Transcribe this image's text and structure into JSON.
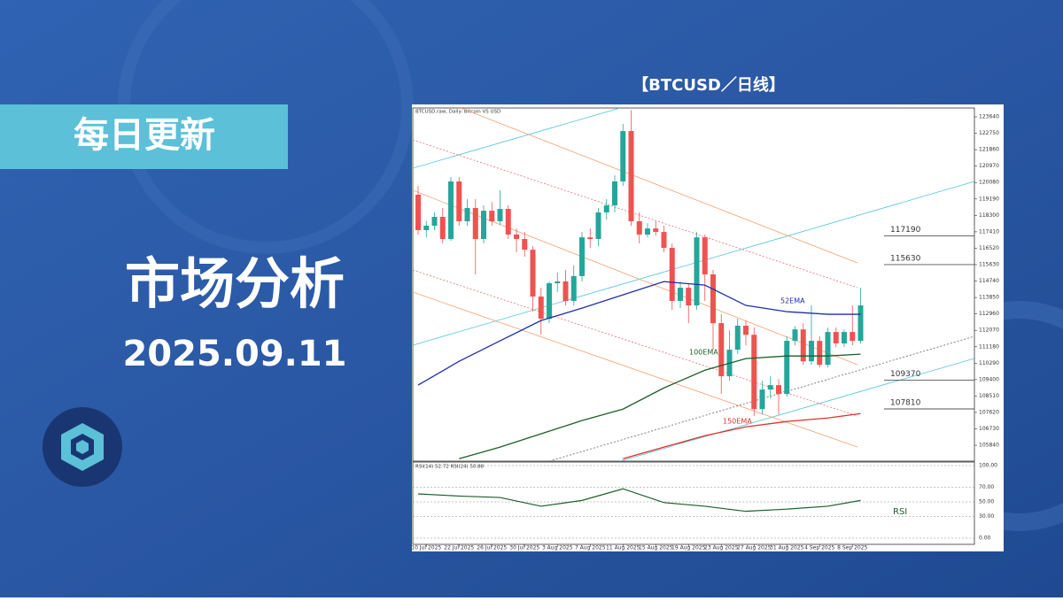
{
  "banner": "每日更新",
  "headline": "市场分析",
  "date": "2025.09.11",
  "chart_data": {
    "type": "candlestick",
    "title": "【BTCUSD／日线】",
    "subtitle": "BTCUSD.raw, Daily: Bitcoin VS USD",
    "categories": [
      null,
      "10 Jul 2025",
      null,
      null,
      null,
      "22 Jul 2025",
      null,
      null,
      null,
      "26 Jul 2025",
      null,
      null,
      null,
      "30 Jul 2025",
      null,
      null,
      null,
      "3 Aug 2025",
      null,
      null,
      null,
      "7 Aug 2025",
      null,
      null,
      null,
      "11 Aug 2025",
      null,
      null,
      null,
      "15 Aug 2025",
      null,
      null,
      null,
      "19 Aug 2025",
      null,
      null,
      null,
      "23 Aug 2025",
      null,
      null,
      null,
      "27 Aug 2025",
      null,
      null,
      null,
      "31 Aug 2025",
      null,
      null,
      null,
      "4 Sep 2025",
      null,
      null,
      null,
      "8 Sep 2025",
      null
    ],
    "open": [
      119420,
      117500,
      117740,
      118220,
      117020,
      120140,
      117980,
      118700,
      117020,
      118550,
      117980,
      118650,
      117260,
      117020,
      116440,
      113900,
      112700,
      114620,
      114720,
      113660,
      115010,
      117110,
      117020,
      118460,
      118840,
      120140,
      122870,
      117980,
      117260,
      117590,
      117400,
      116540,
      113660,
      114380,
      113420,
      117110,
      115100,
      112460,
      109580,
      111020,
      112320,
      111830,
      107800,
      108860,
      109100,
      108620,
      111500,
      112120,
      110390,
      111500,
      110200,
      111980,
      111360,
      111980,
      111500
    ],
    "high": [
      119900,
      118000,
      118460,
      118700,
      120380,
      120380,
      119180,
      119180,
      118840,
      119030,
      119660,
      118840,
      117590,
      117400,
      116630,
      114380,
      114720,
      115200,
      115340,
      115580,
      117400,
      117590,
      118700,
      119180,
      120470,
      123260,
      124000,
      118460,
      117880,
      117980,
      117740,
      116780,
      114720,
      114620,
      117400,
      117260,
      115340,
      112940,
      112070,
      112700,
      112600,
      112220,
      109340,
      109580,
      109430,
      111740,
      112300,
      112460,
      113420,
      111740,
      112220,
      112220,
      112120,
      113420,
      114380
    ],
    "low": [
      117260,
      117110,
      117500,
      116780,
      116920,
      117740,
      117740,
      115100,
      116780,
      117740,
      117780,
      117020,
      116300,
      116060,
      113080,
      111830,
      112460,
      114140,
      113420,
      113420,
      114720,
      116540,
      116630,
      118070,
      118460,
      119900,
      117740,
      116780,
      117110,
      117210,
      116300,
      113180,
      113270,
      112460,
      113180,
      113660,
      111020,
      108620,
      109340,
      110780,
      111260,
      107420,
      107510,
      108380,
      107510,
      108470,
      111260,
      110200,
      110200,
      110060,
      110060,
      111160,
      111160,
      111260,
      111350
    ],
    "close": [
      117500,
      117740,
      118220,
      117020,
      120140,
      117980,
      118700,
      117020,
      118550,
      117980,
      118650,
      117260,
      117020,
      116440,
      113900,
      112700,
      114620,
      114720,
      113660,
      115010,
      117110,
      117020,
      118460,
      118840,
      120140,
      122870,
      117980,
      117260,
      117590,
      117400,
      116540,
      113660,
      114380,
      113420,
      117110,
      115100,
      112460,
      109580,
      111020,
      112320,
      111830,
      107800,
      108860,
      109100,
      108620,
      111500,
      112120,
      110390,
      111500,
      110200,
      111980,
      111360,
      111980,
      111500,
      113420
    ],
    "up_color": "#26a69a",
    "down_color": "#ef5350",
    "ylim": [
      104980,
      124120
    ],
    "yticks": [
      123640,
      122750,
      121860,
      120970,
      120080,
      119190,
      118300,
      117410,
      116520,
      115630,
      114740,
      113850,
      112960,
      112070,
      111180,
      110290,
      109400,
      108510,
      107620,
      106730,
      105840
    ],
    "lines": [
      {
        "name": "52EMA",
        "color": "#1f2fa8",
        "x": [
          0,
          5,
          10,
          15,
          20,
          25,
          30,
          35,
          40,
          45,
          50,
          54
        ],
        "values": [
          109100,
          110390,
          111500,
          112600,
          113270,
          113990,
          114710,
          114520,
          113420,
          113080,
          112940,
          112940
        ]
      },
      {
        "name": "100EMA",
        "color": "#1e5e2a",
        "x": [
          5,
          10,
          15,
          20,
          25,
          30,
          35,
          40,
          45,
          50,
          54
        ],
        "values": [
          105110,
          105740,
          106460,
          107180,
          107800,
          108950,
          109910,
          110540,
          110680,
          110680,
          110780
        ]
      },
      {
        "name": "150EMA",
        "color": "#e0302a",
        "x": [
          25,
          30,
          35,
          40,
          45,
          50,
          54
        ],
        "values": [
          105110,
          105740,
          106360,
          106840,
          107130,
          107320,
          107560
        ]
      }
    ],
    "levels": [
      117190,
      115630,
      109370,
      107810
    ],
    "level_color": "#555555",
    "indicator": {
      "title": "RSI(14) 52.72 RSI(24) 50.88",
      "name": "RSI",
      "color": "#1e5e2a",
      "ylim": [
        0,
        100
      ],
      "yticks": [
        {
          "value": 100,
          "label": "100.00"
        },
        {
          "value": 70,
          "label": "70.00"
        },
        {
          "value": 50,
          "label": "50.00"
        },
        {
          "value": 30,
          "label": "30.00"
        },
        {
          "value": 0,
          "label": "0.00"
        }
      ],
      "x": [
        0,
        5,
        10,
        15,
        20,
        25,
        30,
        35,
        40,
        45,
        50,
        54
      ],
      "values": [
        61,
        58,
        56,
        44,
        52,
        68,
        49,
        44,
        37,
        40,
        44,
        52
      ]
    }
  }
}
